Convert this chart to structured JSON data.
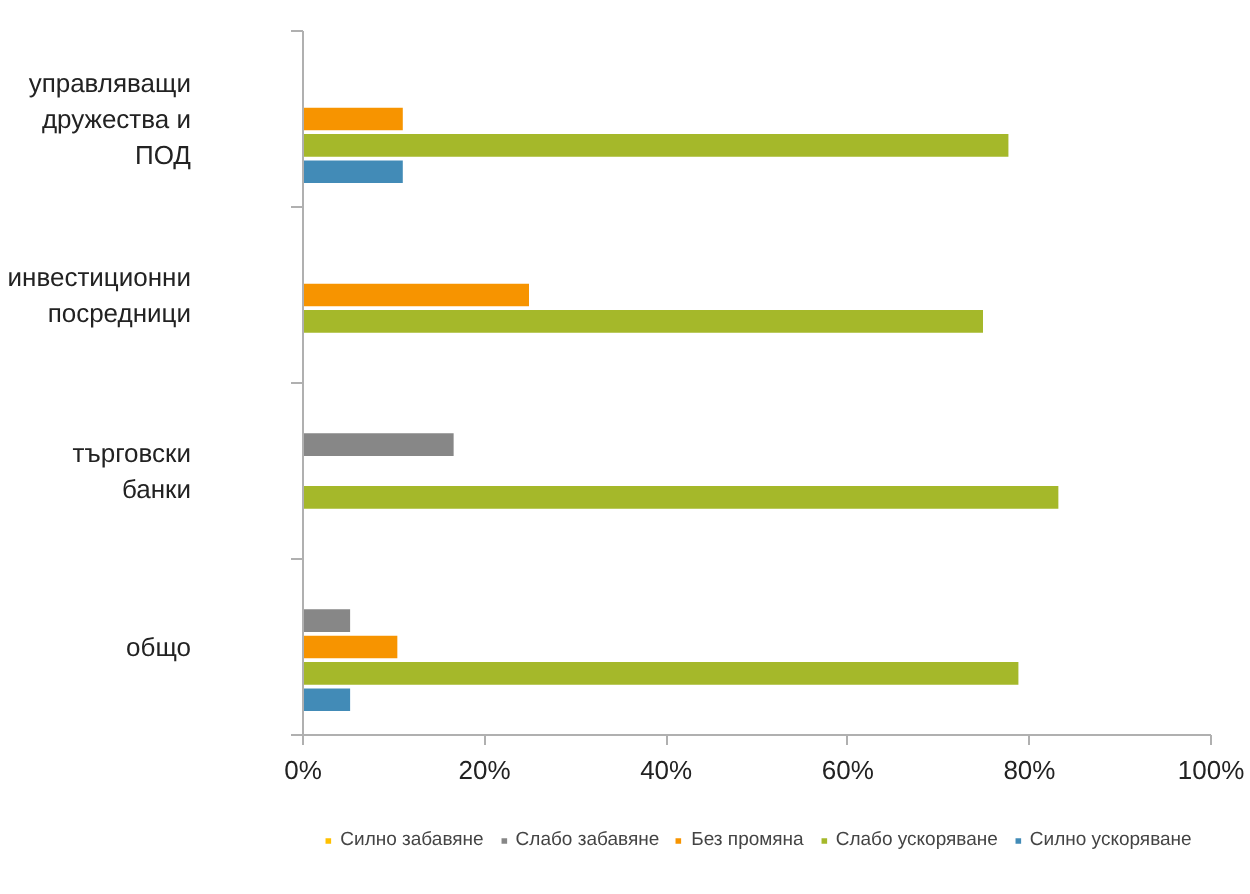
{
  "chart_data": {
    "type": "bar",
    "orientation": "horizontal",
    "categories": [
      "управляващи дружества и ПОД",
      "инвестиционни посредници",
      "търговски банки",
      "общо"
    ],
    "series": [
      {
        "name": "Силно забавяне",
        "color": "#ffc000",
        "values": [
          null,
          null,
          null,
          null
        ]
      },
      {
        "name": "Слабо забавяне",
        "color": "#878787",
        "values": [
          null,
          null,
          16.7,
          5.3
        ]
      },
      {
        "name": "Без промяна",
        "color": "#f79400",
        "values": [
          11.1,
          25.0,
          null,
          10.5
        ]
      },
      {
        "name": "Слабо ускоряване",
        "color": "#a5b82a",
        "values": [
          77.8,
          75.0,
          83.3,
          78.9
        ]
      },
      {
        "name": "Силно ускоряване",
        "color": "#428bb7",
        "values": [
          11.1,
          null,
          null,
          5.3
        ]
      }
    ],
    "xlim": [
      0,
      100
    ],
    "xticks": [
      {
        "value": 0,
        "label": "0%"
      },
      {
        "value": 20,
        "label": "20%"
      },
      {
        "value": 40,
        "label": "40%"
      },
      {
        "value": 60,
        "label": "60%"
      },
      {
        "value": 80,
        "label": "80%"
      },
      {
        "value": 100,
        "label": "100%"
      }
    ],
    "grid": false,
    "legend": "bottom"
  }
}
